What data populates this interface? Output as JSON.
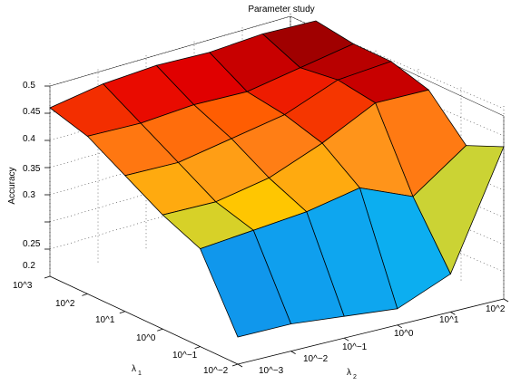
{
  "chart_data": {
    "type": "surface3d",
    "title": "Parameter study",
    "zlabel": "Accuracy",
    "xlabel_base": "λ",
    "xlabel_sub": "1",
    "ylabel_base": "λ",
    "ylabel_sub": "2",
    "lambda1_ticks": [
      "10^3",
      "10^2",
      "10^1",
      "10^0",
      "10^−1",
      "10^−2"
    ],
    "lambda2_ticks": [
      "10^−3",
      "10^−2",
      "10^−1",
      "10^0",
      "10^1",
      "10^2"
    ],
    "z_ticks": [
      "0.2",
      "0.25",
      "0.3",
      "0.35",
      "0.4",
      "0.45",
      "0.5"
    ],
    "z_values": [
      0.2,
      0.25,
      0.3,
      0.35,
      0.4,
      0.45,
      0.5
    ],
    "zlim": [
      0.15,
      0.5
    ],
    "grid": true,
    "surface": {
      "lambda1": [
        "10^3",
        "10^2",
        "10^1",
        "10^0",
        "10^−1",
        "10^−2"
      ],
      "lambda2": [
        "10^−3",
        "10^−2",
        "10^−1",
        "10^0",
        "10^1",
        "10^2"
      ],
      "accuracy": [
        [
          0.46,
          0.48,
          0.49,
          0.49,
          0.5,
          0.5
        ],
        [
          0.44,
          0.44,
          0.45,
          0.45,
          0.47,
          0.49
        ],
        [
          0.4,
          0.4,
          0.42,
          0.44,
          0.48,
          0.49
        ],
        [
          0.36,
          0.36,
          0.38,
          0.42,
          0.47,
          0.47
        ],
        [
          0.33,
          0.34,
          0.35,
          0.37,
          0.33,
          0.4
        ],
        [
          0.2,
          0.2,
          0.19,
          0.18,
          0.22,
          0.43
        ]
      ]
    }
  }
}
